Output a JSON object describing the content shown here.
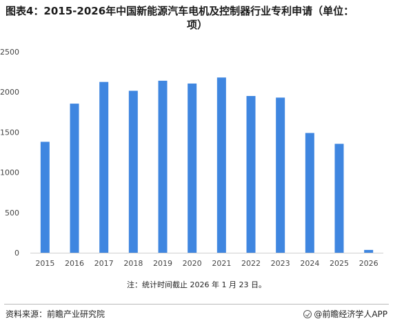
{
  "header": {
    "title_line1": "图表4：2015-2026年中国新能源汽车电机及控制器行业专利申请（单位：",
    "title_line2": "项）"
  },
  "chart_data": {
    "type": "bar",
    "categories": [
      "2015",
      "2016",
      "2017",
      "2018",
      "2019",
      "2020",
      "2021",
      "2022",
      "2023",
      "2024",
      "2025",
      "2026"
    ],
    "values": [
      1380,
      1855,
      2125,
      2015,
      2140,
      2105,
      2180,
      1950,
      1930,
      1490,
      1355,
      35
    ],
    "yticks": [
      0,
      500,
      1000,
      1500,
      2000,
      2500
    ],
    "ylim": [
      0,
      2500
    ],
    "bar_color": "#3f86e0",
    "grid": false
  },
  "note": "注：统计时间截止 2026 年 1 月 23 日。",
  "footer": {
    "source": "资料来源：前瞻产业研究院",
    "brand": "@前瞻经济学人APP"
  }
}
